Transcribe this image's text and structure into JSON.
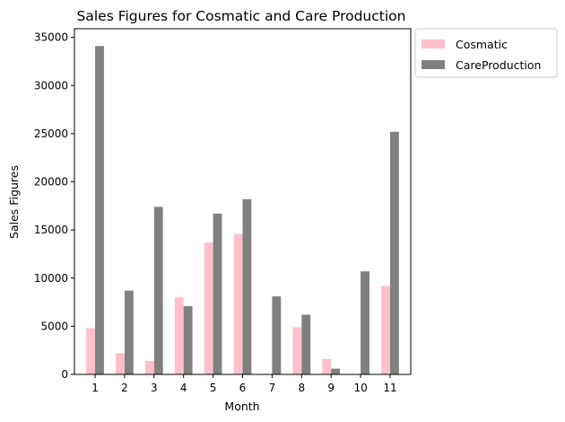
{
  "chart_data": {
    "type": "bar",
    "title": "Sales Figures for Cosmatic and Care Production",
    "xlabel": "Month",
    "ylabel": "Sales Figures",
    "categories": [
      "1",
      "2",
      "3",
      "4",
      "5",
      "6",
      "7",
      "8",
      "9",
      "10",
      "11"
    ],
    "series": [
      {
        "name": "Cosmatic",
        "color": "#ffc0cb",
        "values": [
          4800,
          2200,
          1400,
          8000,
          13700,
          14600,
          0,
          4900,
          1600,
          0,
          9200
        ]
      },
      {
        "name": "CareProduction",
        "color": "#808080",
        "values": [
          34100,
          8700,
          17400,
          7100,
          16700,
          18200,
          8100,
          6200,
          600,
          10700,
          25200
        ]
      }
    ],
    "ylim": [
      0,
      35900
    ],
    "yticks": [
      0,
      5000,
      10000,
      15000,
      20000,
      25000,
      30000,
      35000
    ],
    "grid": false,
    "legend": "outside-upper-right"
  }
}
